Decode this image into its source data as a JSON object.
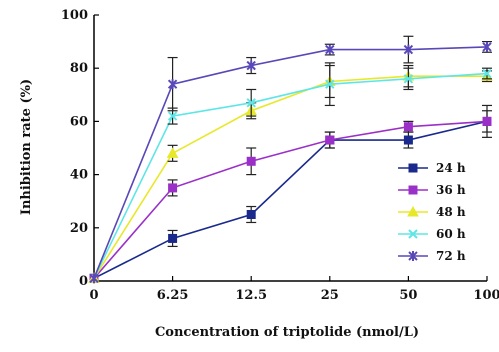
{
  "chart_data": {
    "type": "line",
    "x": [
      "0",
      "6.25",
      "12.5",
      "25",
      "50",
      "100"
    ],
    "xlabel": "Concentration of triptolide (nmol/L)",
    "ylabel": "Inhibition rate (%)",
    "ylim": [
      0,
      100
    ],
    "yticks": [
      "0",
      "20",
      "40",
      "60",
      "80",
      "100"
    ],
    "grid": false,
    "legend_position": "bottom-right",
    "series": [
      {
        "name": "24 h",
        "color": "#1a2a8c",
        "marker": "square",
        "values": [
          1,
          16,
          25,
          53,
          53,
          60
        ],
        "errors": [
          0,
          3,
          3,
          3,
          3,
          4
        ]
      },
      {
        "name": "36 h",
        "color": "#9b30c8",
        "marker": "square",
        "values": [
          1,
          35,
          45,
          53,
          58,
          60
        ],
        "errors": [
          0,
          3,
          5,
          3,
          2,
          6
        ]
      },
      {
        "name": "48 h",
        "color": "#e8e82a",
        "marker": "triangle",
        "values": [
          1,
          48,
          64,
          75,
          77,
          77
        ],
        "errors": [
          0,
          3,
          3,
          6,
          4,
          2
        ]
      },
      {
        "name": "60 h",
        "color": "#5ee6e6",
        "marker": "x",
        "values": [
          1,
          62,
          67,
          74,
          76,
          78
        ],
        "errors": [
          0,
          3,
          5,
          8,
          4,
          2
        ]
      },
      {
        "name": "72 h",
        "color": "#5848b8",
        "marker": "star",
        "values": [
          1,
          74,
          81,
          87,
          87,
          88
        ],
        "errors": [
          0,
          10,
          3,
          2,
          5,
          2
        ]
      }
    ]
  }
}
